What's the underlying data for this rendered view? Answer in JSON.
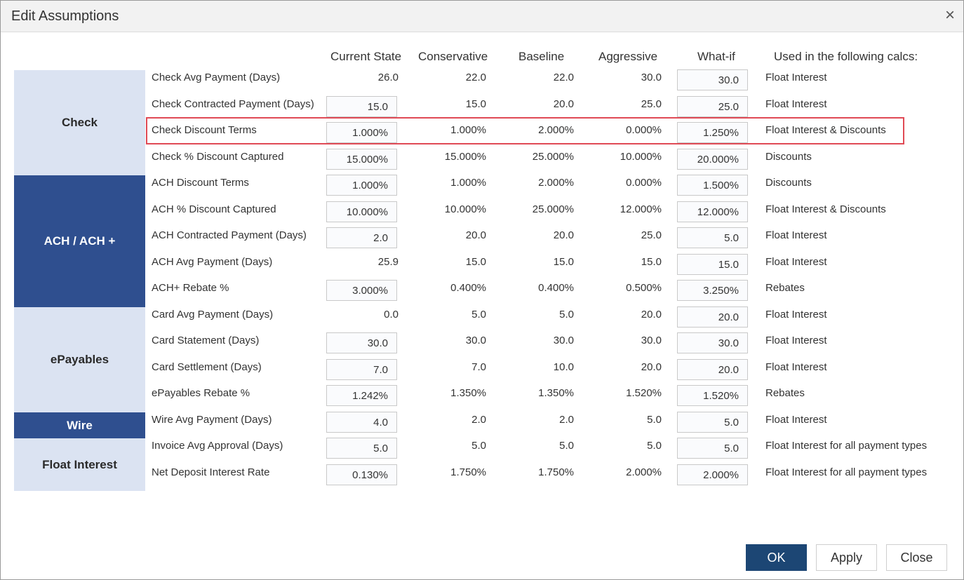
{
  "dialog": {
    "title": "Edit Assumptions",
    "close_icon": "×"
  },
  "columns": {
    "current": "Current State",
    "conservative": "Conservative",
    "baseline": "Baseline",
    "aggressive": "Aggressive",
    "whatif": "What-if",
    "calcs": "Used in the following calcs:"
  },
  "groups": [
    {
      "name": "Check",
      "style": "light",
      "rows": 4
    },
    {
      "name": "ACH / ACH +",
      "style": "dark",
      "rows": 5
    },
    {
      "name": "ePayables",
      "style": "light",
      "rows": 4
    },
    {
      "name": "Wire",
      "style": "dark",
      "rows": 1
    },
    {
      "name": "Float Interest",
      "style": "light",
      "rows": 2
    }
  ],
  "rows": [
    {
      "label": "Check Avg Payment (Days)",
      "current": "26.0",
      "current_editable": false,
      "conservative": "22.0",
      "baseline": "22.0",
      "aggressive": "30.0",
      "whatif": "30.0",
      "calcs": "Float Interest"
    },
    {
      "label": "Check Contracted Payment (Days)",
      "current": "15.0",
      "current_editable": true,
      "conservative": "15.0",
      "baseline": "20.0",
      "aggressive": "25.0",
      "whatif": "25.0",
      "calcs": "Float Interest"
    },
    {
      "label": "Check Discount Terms",
      "current": "1.000%",
      "current_editable": true,
      "conservative": "1.000%",
      "baseline": "2.000%",
      "aggressive": "0.000%",
      "whatif": "1.250%",
      "calcs": "Float Interest & Discounts"
    },
    {
      "label": "Check % Discount Captured",
      "current": "15.000%",
      "current_editable": true,
      "conservative": "15.000%",
      "baseline": "25.000%",
      "aggressive": "10.000%",
      "whatif": "20.000%",
      "calcs": "Discounts"
    },
    {
      "label": "ACH Discount Terms",
      "current": "1.000%",
      "current_editable": true,
      "conservative": "1.000%",
      "baseline": "2.000%",
      "aggressive": "0.000%",
      "whatif": "1.500%",
      "calcs": "Discounts"
    },
    {
      "label": "ACH % Discount Captured",
      "current": "10.000%",
      "current_editable": true,
      "conservative": "10.000%",
      "baseline": "25.000%",
      "aggressive": "12.000%",
      "whatif": "12.000%",
      "calcs": "Float Interest & Discounts"
    },
    {
      "label": "ACH Contracted Payment (Days)",
      "current": "2.0",
      "current_editable": true,
      "conservative": "20.0",
      "baseline": "20.0",
      "aggressive": "25.0",
      "whatif": "5.0",
      "calcs": "Float Interest"
    },
    {
      "label": "ACH Avg Payment (Days)",
      "current": "25.9",
      "current_editable": false,
      "conservative": "15.0",
      "baseline": "15.0",
      "aggressive": "15.0",
      "whatif": "15.0",
      "calcs": "Float Interest"
    },
    {
      "label": "ACH+ Rebate %",
      "current": "3.000%",
      "current_editable": true,
      "conservative": "0.400%",
      "baseline": "0.400%",
      "aggressive": "0.500%",
      "whatif": "3.250%",
      "calcs": "Rebates"
    },
    {
      "label": "Card Avg Payment (Days)",
      "current": "0.0",
      "current_editable": false,
      "conservative": "5.0",
      "baseline": "5.0",
      "aggressive": "20.0",
      "whatif": "20.0",
      "calcs": "Float Interest"
    },
    {
      "label": "Card Statement (Days)",
      "current": "30.0",
      "current_editable": true,
      "conservative": "30.0",
      "baseline": "30.0",
      "aggressive": "30.0",
      "whatif": "30.0",
      "calcs": "Float Interest"
    },
    {
      "label": "Card Settlement (Days)",
      "current": "7.0",
      "current_editable": true,
      "conservative": "7.0",
      "baseline": "10.0",
      "aggressive": "20.0",
      "whatif": "20.0",
      "calcs": "Float Interest"
    },
    {
      "label": "ePayables Rebate %",
      "current": "1.242%",
      "current_editable": true,
      "conservative": "1.350%",
      "baseline": "1.350%",
      "aggressive": "1.520%",
      "whatif": "1.520%",
      "calcs": "Rebates"
    },
    {
      "label": "Wire Avg Payment (Days)",
      "current": "4.0",
      "current_editable": true,
      "conservative": "2.0",
      "baseline": "2.0",
      "aggressive": "5.0",
      "whatif": "5.0",
      "calcs": "Float Interest"
    },
    {
      "label": "Invoice Avg Approval (Days)",
      "current": "5.0",
      "current_editable": true,
      "conservative": "5.0",
      "baseline": "5.0",
      "aggressive": "5.0",
      "whatif": "5.0",
      "calcs": "Float Interest for all payment types"
    },
    {
      "label": "Net Deposit Interest Rate",
      "current": "0.130%",
      "current_editable": true,
      "conservative": "1.750%",
      "baseline": "1.750%",
      "aggressive": "2.000%",
      "whatif": "2.000%",
      "calcs": "Float Interest for all payment types"
    }
  ],
  "highlighted_row": "Check Discount Terms",
  "buttons": {
    "ok": "OK",
    "apply": "Apply",
    "close": "Close"
  },
  "colors": {
    "group_light": "#dbe3f2",
    "group_dark": "#2f4f8f",
    "primary_button": "#1c4674",
    "highlight_border": "#e04a55"
  }
}
